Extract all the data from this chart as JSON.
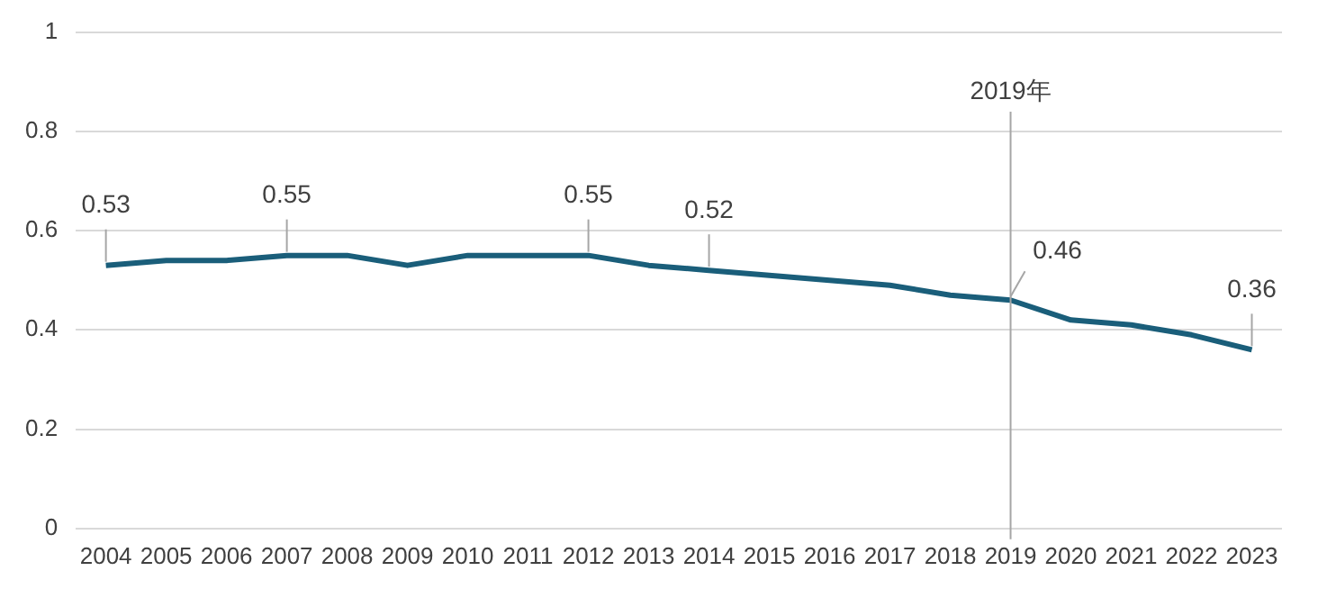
{
  "chart_data": {
    "type": "line",
    "categories": [
      "2004",
      "2005",
      "2006",
      "2007",
      "2008",
      "2009",
      "2010",
      "2011",
      "2012",
      "2013",
      "2014",
      "2015",
      "2016",
      "2017",
      "2018",
      "2019",
      "2020",
      "2021",
      "2022",
      "2023"
    ],
    "series": [
      {
        "color": "#1a5e7a",
        "values": [
          0.53,
          0.54,
          0.54,
          0.55,
          0.55,
          0.53,
          0.55,
          0.55,
          0.55,
          0.53,
          0.52,
          0.51,
          0.5,
          0.49,
          0.47,
          0.46,
          0.42,
          0.41,
          0.39,
          0.36
        ],
        "value_labels": [
          "0.53",
          null,
          null,
          "0.55",
          null,
          null,
          null,
          null,
          "0.55",
          null,
          "0.52",
          null,
          null,
          null,
          null,
          "0.46",
          null,
          null,
          null,
          "0.36"
        ]
      }
    ],
    "ylim": [
      0,
      1
    ],
    "yticks": [
      0,
      0.2,
      0.4,
      0.6,
      0.8,
      1
    ],
    "grid": "y",
    "legend": false,
    "marker": "none",
    "line_style": "solid",
    "ref_lines": [
      {
        "axis": "x",
        "value": "2019",
        "label": "2019年",
        "color": "#a6a6a6"
      }
    ]
  }
}
